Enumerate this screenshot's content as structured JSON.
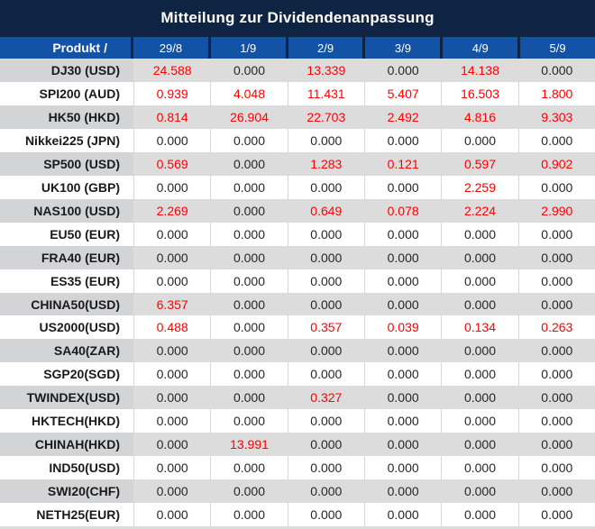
{
  "title": "Mitteilung zur Dividendenanpassung",
  "chart_data": {
    "type": "table",
    "columns": [
      "Produkt /",
      "29/8",
      "1/9",
      "2/9",
      "3/9",
      "4/9",
      "5/9"
    ],
    "rows": [
      {
        "label": "DJ30 (USD)",
        "values": [
          "24.588",
          "0.000",
          "13.339",
          "0.000",
          "14.138",
          "0.000"
        ]
      },
      {
        "label": "SPI200 (AUD)",
        "values": [
          "0.939",
          "4.048",
          "11.431",
          "5.407",
          "16.503",
          "1.800"
        ]
      },
      {
        "label": "HK50 (HKD)",
        "values": [
          "0.814",
          "26.904",
          "22.703",
          "2.492",
          "4.816",
          "9.303"
        ]
      },
      {
        "label": "Nikkei225 (JPN)",
        "values": [
          "0.000",
          "0.000",
          "0.000",
          "0.000",
          "0.000",
          "0.000"
        ]
      },
      {
        "label": "SP500 (USD)",
        "values": [
          "0.569",
          "0.000",
          "1.283",
          "0.121",
          "0.597",
          "0.902"
        ]
      },
      {
        "label": "UK100 (GBP)",
        "values": [
          "0.000",
          "0.000",
          "0.000",
          "0.000",
          "2.259",
          "0.000"
        ]
      },
      {
        "label": "NAS100 (USD)",
        "values": [
          "2.269",
          "0.000",
          "0.649",
          "0.078",
          "2.224",
          "2.990"
        ]
      },
      {
        "label": "EU50 (EUR)",
        "values": [
          "0.000",
          "0.000",
          "0.000",
          "0.000",
          "0.000",
          "0.000"
        ]
      },
      {
        "label": "FRA40 (EUR)",
        "values": [
          "0.000",
          "0.000",
          "0.000",
          "0.000",
          "0.000",
          "0.000"
        ]
      },
      {
        "label": "ES35 (EUR)",
        "values": [
          "0.000",
          "0.000",
          "0.000",
          "0.000",
          "0.000",
          "0.000"
        ]
      },
      {
        "label": "CHINA50(USD)",
        "values": [
          "6.357",
          "0.000",
          "0.000",
          "0.000",
          "0.000",
          "0.000"
        ]
      },
      {
        "label": "US2000(USD)",
        "values": [
          "0.488",
          "0.000",
          "0.357",
          "0.039",
          "0.134",
          "0.263"
        ]
      },
      {
        "label": "SA40(ZAR)",
        "values": [
          "0.000",
          "0.000",
          "0.000",
          "0.000",
          "0.000",
          "0.000"
        ]
      },
      {
        "label": "SGP20(SGD)",
        "values": [
          "0.000",
          "0.000",
          "0.000",
          "0.000",
          "0.000",
          "0.000"
        ]
      },
      {
        "label": "TWINDEX(USD)",
        "values": [
          "0.000",
          "0.000",
          "0.327",
          "0.000",
          "0.000",
          "0.000"
        ]
      },
      {
        "label": "HKTECH(HKD)",
        "values": [
          "0.000",
          "0.000",
          "0.000",
          "0.000",
          "0.000",
          "0.000"
        ]
      },
      {
        "label": "CHINAH(HKD)",
        "values": [
          "0.000",
          "13.991",
          "0.000",
          "0.000",
          "0.000",
          "0.000"
        ]
      },
      {
        "label": "IND50(USD)",
        "values": [
          "0.000",
          "0.000",
          "0.000",
          "0.000",
          "0.000",
          "0.000"
        ]
      },
      {
        "label": "SWI20(CHF)",
        "values": [
          "0.000",
          "0.000",
          "0.000",
          "0.000",
          "0.000",
          "0.000"
        ]
      },
      {
        "label": "NETH25(EUR)",
        "values": [
          "0.000",
          "0.000",
          "0.000",
          "0.000",
          "0.000",
          "0.000"
        ]
      }
    ]
  },
  "colors": {
    "title_bar": "#0f2443",
    "header_cell": "#1353a5",
    "header_text": "#ffffff",
    "stripe_label": "#d2d4d6",
    "stripe_value": "#dcdcdc",
    "row_white": "#ffffff",
    "label_text": "#1a1a1a",
    "value_zero": "#262626",
    "value_nonzero": "#fe0000"
  }
}
